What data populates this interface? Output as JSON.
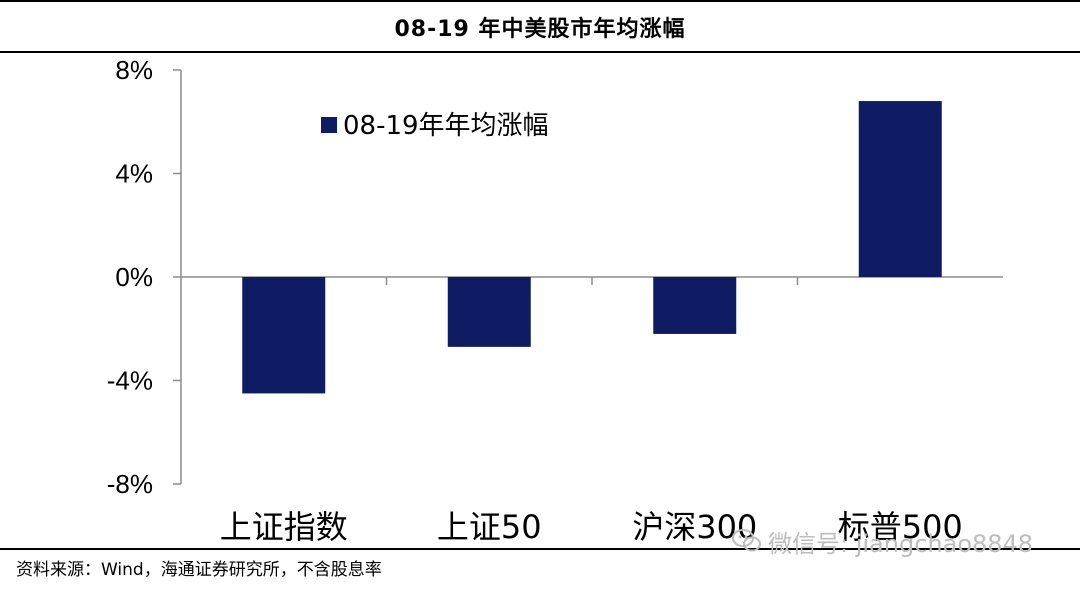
{
  "header": {
    "title": "08-19 年中美股市年均涨幅"
  },
  "chart_data": {
    "type": "bar",
    "categories": [
      "上证指数",
      "上证50",
      "沪深300",
      "标普500"
    ],
    "series": [
      {
        "name": "08-19年年均涨幅",
        "values": [
          -4.5,
          -2.7,
          -2.2,
          6.8
        ],
        "color": "#0f1c64"
      }
    ],
    "ylim": [
      -8,
      8
    ],
    "yticks": [
      -8,
      -4,
      0,
      4,
      8
    ],
    "ytick_labels": [
      "-8%",
      "-4%",
      "0%",
      "4%",
      "8%"
    ],
    "legend_position": "top-left",
    "grid": false
  },
  "footer": {
    "source": "资料来源：Wind，海通证券研究所，不含股息率"
  },
  "watermark": {
    "text": "微信号: jiangchao8848",
    "icon": "wechat-icon"
  }
}
